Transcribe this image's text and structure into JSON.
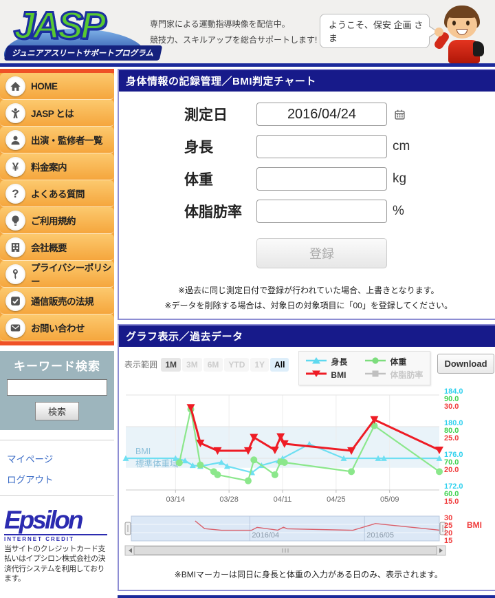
{
  "header": {
    "logo_title": "JASP",
    "logo_subtitle": "ジュニアアスリートサポートプログラム",
    "tagline_line1": "専門家による運動指導映像を配信中。",
    "tagline_line2": "競技力、スキルアップを総合サポートします!",
    "welcome": "ようこそ、保安 企画 さま"
  },
  "sidebar": {
    "items": [
      {
        "id": "home",
        "icon": "home-icon",
        "label": "HOME"
      },
      {
        "id": "about",
        "icon": "person-icon",
        "label": "JASP とは"
      },
      {
        "id": "cast",
        "icon": "user-icon",
        "label": "出演・監修者一覧"
      },
      {
        "id": "pricing",
        "icon": "yen-icon",
        "label": "料金案内"
      },
      {
        "id": "faq",
        "icon": "question-icon",
        "label": "よくある質問"
      },
      {
        "id": "terms",
        "icon": "bulb-icon",
        "label": "ご利用規約"
      },
      {
        "id": "company",
        "icon": "building-icon",
        "label": "会社概要"
      },
      {
        "id": "privacy",
        "icon": "key-icon",
        "label": "プライバシーポリシー"
      },
      {
        "id": "law",
        "icon": "check-icon",
        "label": "通信販売の法規"
      },
      {
        "id": "contact",
        "icon": "mail-icon",
        "label": "お問い合わせ"
      }
    ],
    "search": {
      "title": "キーワード検索",
      "value": "",
      "button_label": "検索"
    },
    "links": [
      {
        "id": "mypage",
        "label": "マイページ"
      },
      {
        "id": "logout",
        "label": "ログアウト"
      }
    ],
    "epsilon": {
      "logo": "Epsilon",
      "sub": "INTERNET CREDIT",
      "note": "当サイトのクレジットカード支払いはイプシロン株式会社の決済代行システムを利用しております。"
    }
  },
  "form_panel": {
    "title": "身体情報の記録管理／BMI判定チャート",
    "fields": [
      {
        "id": "date",
        "label": "測定日",
        "value": "2016/04/24",
        "unit": "",
        "calendar": true
      },
      {
        "id": "height",
        "label": "身長",
        "value": "",
        "unit": "cm",
        "calendar": false
      },
      {
        "id": "weight",
        "label": "体重",
        "value": "",
        "unit": "kg",
        "calendar": false
      },
      {
        "id": "bodyfat",
        "label": "体脂肪率",
        "value": "",
        "unit": "%",
        "calendar": false
      }
    ],
    "submit_label": "登録",
    "notes": [
      "※過去に同じ測定日付で登録が行われていた場合、上書きとなります。",
      "※データを削除する場合は、対象日の対象項目に「00」を登録してください。"
    ]
  },
  "graph_panel": {
    "title": "グラフ表示／過去データ",
    "range_label": "表示範囲",
    "range_buttons": [
      {
        "label": "1M",
        "state": "enabled"
      },
      {
        "label": "3M",
        "state": "disabled"
      },
      {
        "label": "6M",
        "state": "disabled"
      },
      {
        "label": "YTD",
        "state": "disabled"
      },
      {
        "label": "1Y",
        "state": "disabled"
      },
      {
        "label": "All",
        "state": "selected"
      }
    ],
    "legend": [
      {
        "id": "height",
        "label": "身長",
        "marker": "triangle-up",
        "color": "#5fd9ef",
        "enabled": true
      },
      {
        "id": "weight",
        "label": "体重",
        "marker": "circle",
        "color": "#7ddd7d",
        "enabled": true
      },
      {
        "id": "bmi",
        "label": "BMI",
        "marker": "triangle-down",
        "color": "#ee1c25",
        "enabled": true
      },
      {
        "id": "bodyfat",
        "label": "体脂肪率",
        "marker": "square",
        "color": "#c0c0c0",
        "enabled": false
      }
    ],
    "download_label": "Download",
    "note": "※BMIマーカーは同日に身長と体重の入力がある日のみ、表示されます。"
  },
  "chart_data": {
    "type": "line",
    "x_axis": {
      "unit": "days since 2016-03-01",
      "xlim": [
        0,
        82
      ],
      "ticks": [
        {
          "day": 13,
          "label": "03/14"
        },
        {
          "day": 27,
          "label": "03/28"
        },
        {
          "day": 41,
          "label": "04/11"
        },
        {
          "day": 55,
          "label": "04/25"
        },
        {
          "day": 69,
          "label": "05/09"
        }
      ]
    },
    "band": {
      "series": "bmi",
      "from": 18.5,
      "to": 25,
      "label_line1": "BMI",
      "label_line2": "標準体重域",
      "color": "#e9f3f9",
      "label_color": "#8cc0da"
    },
    "series": [
      {
        "id": "height",
        "name": "身長",
        "unit": "cm",
        "color": "#6edff2",
        "marker": "triangle-up",
        "msize": 4.5,
        "lw": 2.2,
        "ylim": [
          172,
          184
        ],
        "yticks": [
          172,
          176,
          180,
          184
        ],
        "tick_color": "#2fd1ee",
        "points": [
          [
            0,
            176
          ],
          [
            13,
            176
          ],
          [
            15.5,
            175.7
          ],
          [
            17.5,
            175.1
          ],
          [
            19.5,
            175.0
          ],
          [
            25,
            175.5
          ],
          [
            26.5,
            175.0
          ],
          [
            33,
            174.2
          ],
          [
            35.5,
            175.1
          ],
          [
            40,
            175.7
          ],
          [
            41,
            176
          ],
          [
            48,
            177.8
          ],
          [
            57,
            176
          ],
          [
            66,
            176
          ],
          [
            67.5,
            176
          ],
          [
            82,
            176
          ]
        ]
      },
      {
        "id": "weight",
        "name": "体重",
        "unit": "kg",
        "color": "#8be78b",
        "marker": "circle",
        "msize": 5,
        "lw": 2.2,
        "ylim": [
          60,
          90
        ],
        "yticks": [
          60,
          70,
          80,
          90
        ],
        "tick_color": "#3ed24f",
        "points": [
          [
            14,
            68.6
          ],
          [
            17,
            85.5
          ],
          [
            19.5,
            67.9
          ],
          [
            23,
            65.8
          ],
          [
            24,
            64.8
          ],
          [
            32,
            62.9
          ],
          [
            33.5,
            69.5
          ],
          [
            39,
            64.8
          ],
          [
            40.5,
            68.9
          ],
          [
            41.5,
            68.7
          ],
          [
            59,
            65.8
          ],
          [
            65,
            80.3
          ],
          [
            82,
            65.8
          ]
        ]
      },
      {
        "id": "bmi",
        "name": "BMI",
        "unit": "",
        "color": "#ee1c25",
        "marker": "triangle-down",
        "msize": 6,
        "lw": 3,
        "ylim": [
          15,
          30
        ],
        "yticks": [
          15,
          20,
          25,
          30
        ],
        "tick_color": "#f03b3b",
        "points": [
          [
            17,
            28.0
          ],
          [
            19.5,
            22.4
          ],
          [
            24,
            21.2
          ],
          [
            32,
            21.2
          ],
          [
            33.5,
            23.3
          ],
          [
            39,
            21.3
          ],
          [
            40.5,
            23.4
          ],
          [
            41.5,
            22.3
          ],
          [
            59,
            21.2
          ],
          [
            65,
            26.1
          ],
          [
            82,
            21.3
          ]
        ]
      },
      {
        "id": "bodyfat",
        "name": "体脂肪率",
        "unit": "%",
        "color": "#c0c0c0",
        "marker": "square",
        "msize": 4.5,
        "lw": 2,
        "ylim": [
          0,
          50
        ],
        "yticks": [],
        "tick_color": "#c0c0c0",
        "points": []
      }
    ],
    "navigator": {
      "series": "bmi",
      "ylim": [
        15,
        30
      ],
      "yticks": [
        30,
        25,
        20,
        15
      ],
      "axis_label": "BMI",
      "line_color": "#d95f6a",
      "x_labels": [
        {
          "day": 31,
          "label": "2016/04"
        },
        {
          "day": 61,
          "label": "2016/05"
        }
      ]
    }
  }
}
